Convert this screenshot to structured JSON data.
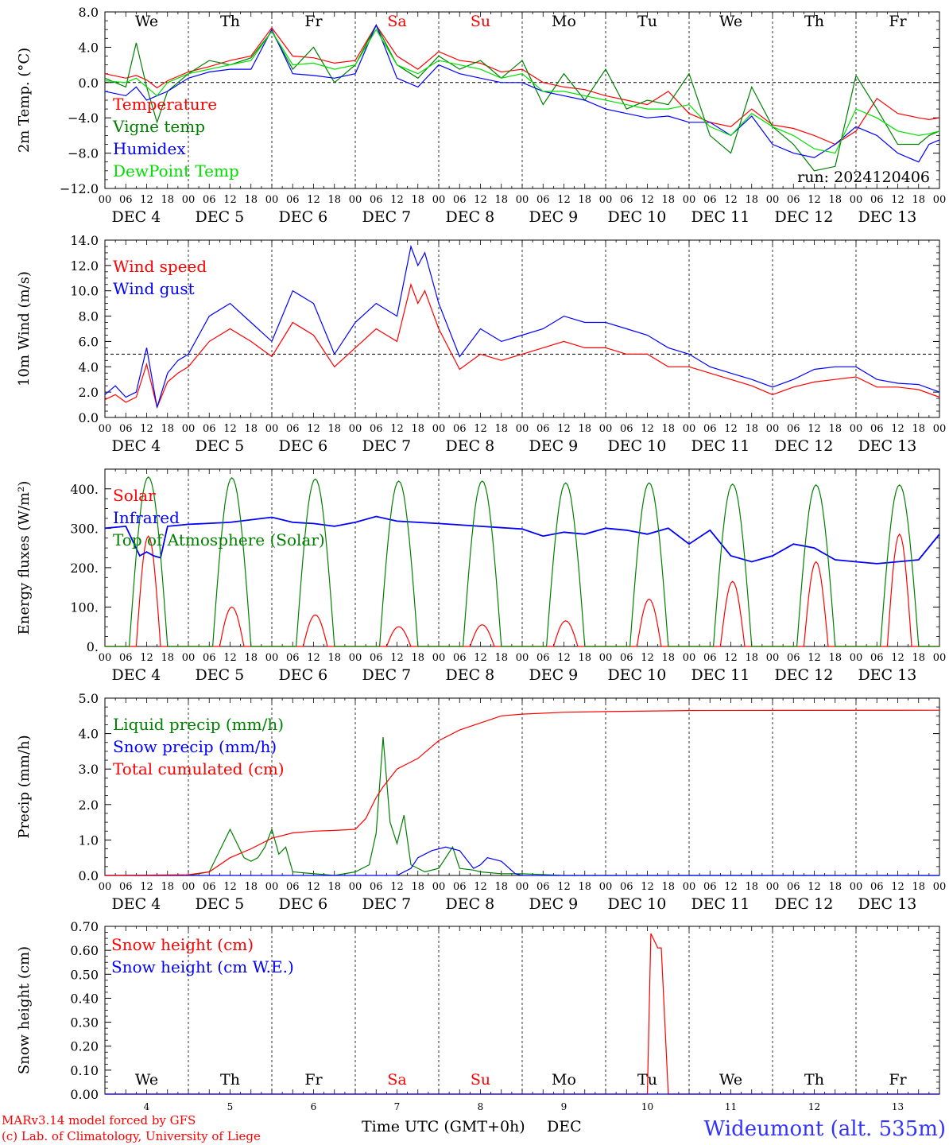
{
  "time_axis": {
    "hour_ticks": [
      "00",
      "06",
      "12",
      "18"
    ],
    "dates": [
      "DEC  4",
      "DEC  5",
      "DEC  6",
      "DEC  7",
      "DEC  8",
      "DEC  9",
      "DEC 10",
      "DEC 11",
      "DEC 12",
      "DEC 13"
    ],
    "day_names": [
      "We",
      "Th",
      "Fr",
      "Sa",
      "Su",
      "Mo",
      "Tu",
      "We",
      "Th",
      "Fr"
    ],
    "day_name_colors": [
      "#000000",
      "#000000",
      "#000000",
      "#ff0000",
      "#ff0000",
      "#000000",
      "#000000",
      "#000000",
      "#000000",
      "#000000"
    ],
    "day_numbers": [
      "4",
      "5",
      "6",
      "7",
      "8",
      "9",
      "10",
      "11",
      "12",
      "13"
    ],
    "xlabel": "Time UTC (GMT+0h)",
    "xlabel_unit": "DEC"
  },
  "footer": {
    "credit_line1": "MARv3.14 model forced by GFS",
    "credit_line2": "(c) Lab. of Climatology, University of Liege",
    "station": "Wideumont (alt. 535m)"
  },
  "chart_data": [
    {
      "type": "line",
      "ylabel": "2m Temp. (°C)",
      "ylim": [
        -12,
        8
      ],
      "yticks": [
        "8.0",
        "4.0",
        "0.0",
        "−4.0",
        "−8.0",
        "−12.0"
      ],
      "ytick_values": [
        8,
        4,
        0,
        -4,
        -8,
        -12
      ],
      "reference_line": 0,
      "run_label": "run: 2024120406",
      "x_unit": "hours since DEC 4 00 UTC",
      "series": [
        {
          "name": "Temperature",
          "color": "#ff0000",
          "x": [
            0,
            6,
            9,
            12,
            15,
            18,
            24,
            30,
            36,
            42,
            48,
            54,
            60,
            66,
            72,
            78,
            84,
            90,
            96,
            102,
            108,
            114,
            120,
            126,
            132,
            138,
            144,
            150,
            156,
            162,
            168,
            174,
            180,
            186,
            192,
            198,
            204,
            210,
            216,
            222,
            228,
            234,
            237,
            240
          ],
          "y": [
            1,
            0.5,
            0.8,
            0.3,
            -0.6,
            0.2,
            1.2,
            1.8,
            2.5,
            3,
            6.2,
            3,
            2.8,
            2.2,
            2.5,
            6.5,
            3,
            1.5,
            3.5,
            2.5,
            2.2,
            1.2,
            1.5,
            0,
            -0.5,
            -0.8,
            -1.5,
            -2,
            -2.5,
            -1,
            -3.5,
            -4.5,
            -5,
            -3,
            -4.8,
            -5.2,
            -6,
            -7,
            -5.5,
            -1.8,
            -3.5,
            -4,
            -4.2,
            -4
          ]
        },
        {
          "name": "Vigne temp",
          "color": "#008000",
          "x": [
            0,
            6,
            9,
            12,
            15,
            18,
            24,
            30,
            36,
            42,
            48,
            54,
            60,
            66,
            72,
            78,
            84,
            90,
            96,
            102,
            108,
            114,
            120,
            126,
            132,
            138,
            144,
            150,
            156,
            162,
            168,
            174,
            180,
            186,
            192,
            198,
            204,
            210,
            216,
            222,
            228,
            234,
            237,
            240
          ],
          "y": [
            0.5,
            -0.5,
            4.5,
            -0.5,
            -4.5,
            -1,
            1,
            2.5,
            2,
            2.8,
            5.8,
            1.5,
            4,
            0,
            2,
            6.5,
            2,
            0.5,
            3,
            1.5,
            2.5,
            0.5,
            2.5,
            -2.5,
            1,
            -2,
            1.5,
            -3,
            -2,
            -2.5,
            1,
            -6,
            -8,
            -0.5,
            -5,
            -7,
            -10,
            -9.5,
            0.8,
            -3,
            -7,
            -7,
            -6,
            -5.5
          ]
        },
        {
          "name": "Humidex",
          "color": "#0000ff",
          "x": [
            0,
            6,
            9,
            12,
            15,
            18,
            24,
            30,
            36,
            42,
            48,
            54,
            60,
            66,
            72,
            78,
            84,
            90,
            96,
            102,
            108,
            114,
            120,
            126,
            132,
            138,
            144,
            150,
            156,
            162,
            168,
            174,
            180,
            186,
            192,
            198,
            204,
            210,
            216,
            222,
            228,
            234,
            237,
            240
          ],
          "y": [
            -1,
            -1.5,
            -0.5,
            -2,
            -1.5,
            -1,
            0.5,
            1.2,
            1.5,
            1.5,
            6,
            1,
            0.8,
            0.5,
            1,
            6.5,
            0.5,
            -0.5,
            2,
            1,
            0.5,
            0,
            0,
            -1,
            -1.5,
            -2,
            -3,
            -3.5,
            -4,
            -3.8,
            -4.5,
            -4.5,
            -6,
            -3.8,
            -7,
            -8,
            -8.5,
            -7,
            -5,
            -6,
            -8,
            -9,
            -7,
            -6.5
          ]
        },
        {
          "name": "DewPoint Temp",
          "color": "#00e000",
          "x": [
            0,
            6,
            9,
            12,
            15,
            18,
            24,
            30,
            36,
            42,
            48,
            54,
            60,
            66,
            72,
            78,
            84,
            90,
            96,
            102,
            108,
            114,
            120,
            126,
            132,
            138,
            144,
            150,
            156,
            162,
            168,
            174,
            180,
            186,
            192,
            198,
            204,
            210,
            216,
            222,
            228,
            234,
            237,
            240
          ],
          "y": [
            0.2,
            0,
            0.5,
            -0.5,
            -1.5,
            0,
            1,
            1.5,
            2,
            2.5,
            5.8,
            2,
            2.2,
            1.5,
            2,
            6,
            2,
            1,
            2.5,
            2,
            1.5,
            0.5,
            1,
            -1,
            -1,
            -1.5,
            -2,
            -2.5,
            -3,
            -3,
            -2.5,
            -5,
            -6,
            -3.5,
            -5,
            -6,
            -7.5,
            -8,
            -3,
            -4,
            -5.5,
            -6,
            -5.8,
            -5.5
          ]
        }
      ]
    },
    {
      "type": "line",
      "ylabel": "10m Wind (m/s)",
      "ylim": [
        0,
        14
      ],
      "yticks": [
        "14.0",
        "12.0",
        "10.0",
        "8.0",
        "6.0",
        "4.0",
        "2.0",
        "0.0"
      ],
      "ytick_values": [
        14,
        12,
        10,
        8,
        6,
        4,
        2,
        0
      ],
      "reference_line": 5,
      "x_unit": "hours since DEC 4 00 UTC",
      "series": [
        {
          "name": "Wind speed",
          "color": "#ff0000",
          "x": [
            0,
            3,
            6,
            9,
            12,
            15,
            18,
            21,
            24,
            30,
            36,
            42,
            48,
            54,
            60,
            66,
            72,
            78,
            84,
            88,
            90,
            92,
            96,
            102,
            108,
            114,
            120,
            126,
            132,
            138,
            144,
            150,
            156,
            162,
            168,
            174,
            180,
            186,
            192,
            198,
            204,
            210,
            216,
            222,
            228,
            234,
            240
          ],
          "y": [
            1.4,
            1.8,
            1.2,
            1.6,
            4.2,
            0.8,
            2.8,
            3.5,
            4,
            6,
            7,
            6,
            4.8,
            7.5,
            6.5,
            4,
            5.5,
            7,
            6,
            10.5,
            9,
            10,
            7,
            3.8,
            5,
            4.5,
            5,
            5.5,
            6,
            5.5,
            5.5,
            5,
            5,
            4,
            4,
            3.5,
            3,
            2.5,
            1.8,
            2.4,
            2.8,
            3,
            3.2,
            2.4,
            2.4,
            2.2,
            1.6
          ]
        },
        {
          "name": "Wind gust",
          "color": "#0000ff",
          "x": [
            0,
            3,
            6,
            9,
            12,
            15,
            18,
            21,
            24,
            30,
            36,
            42,
            48,
            54,
            60,
            66,
            72,
            78,
            84,
            88,
            90,
            92,
            96,
            102,
            108,
            114,
            120,
            126,
            132,
            138,
            144,
            150,
            156,
            162,
            168,
            174,
            180,
            186,
            192,
            198,
            204,
            210,
            216,
            222,
            228,
            234,
            240
          ],
          "y": [
            1.8,
            2.5,
            1.6,
            2,
            5.5,
            0.8,
            3.5,
            4.5,
            5,
            8,
            9,
            7.5,
            6,
            10,
            9,
            5,
            7.5,
            9,
            8,
            13.5,
            12,
            13,
            9,
            4.8,
            7,
            6,
            6.5,
            7,
            8,
            7.5,
            7.5,
            7,
            6.5,
            5.5,
            5,
            4,
            3.5,
            3,
            2.4,
            3,
            3.8,
            4,
            4,
            3,
            2.7,
            2.6,
            2
          ]
        }
      ]
    },
    {
      "type": "line",
      "ylabel": "Energy fluxes (W/m²)",
      "ylim": [
        0,
        450
      ],
      "yticks": [
        "400.",
        "300.",
        "200.",
        "100.",
        "0."
      ],
      "ytick_values": [
        400,
        300,
        200,
        100,
        0
      ],
      "x_unit": "hours since DEC 4 00 UTC",
      "series": [
        {
          "name": "Solar",
          "color": "#ff0000",
          "peaks": [
            280,
            100,
            80,
            50,
            55,
            65,
            120,
            165,
            215,
            285
          ]
        },
        {
          "name": "Infrared",
          "color": "#0000ff",
          "x": [
            0,
            6,
            10,
            12,
            14,
            16,
            18,
            24,
            36,
            48,
            54,
            60,
            66,
            72,
            78,
            84,
            96,
            108,
            120,
            126,
            132,
            138,
            144,
            150,
            156,
            162,
            168,
            174,
            180,
            186,
            192,
            198,
            204,
            210,
            216,
            222,
            228,
            234,
            240
          ],
          "y": [
            300,
            305,
            230,
            240,
            230,
            225,
            305,
            310,
            315,
            328,
            315,
            312,
            305,
            315,
            330,
            318,
            312,
            305,
            298,
            280,
            290,
            285,
            300,
            295,
            285,
            300,
            260,
            295,
            230,
            215,
            230,
            260,
            250,
            220,
            215,
            210,
            215,
            220,
            285
          ]
        },
        {
          "name": "Top of Atmosphere (Solar)",
          "color": "#008000",
          "peaks": [
            430,
            428,
            425,
            420,
            420,
            415,
            415,
            412,
            410,
            410
          ]
        }
      ]
    },
    {
      "type": "line",
      "ylabel": "Precip (mm/h)",
      "ylim": [
        0,
        5
      ],
      "yticks": [
        "5.0",
        "4.0",
        "3.0",
        "2.0",
        "1.0",
        "0.0"
      ],
      "ytick_values": [
        5,
        4,
        3,
        2,
        1,
        0
      ],
      "x_unit": "hours since DEC 4 00 UTC",
      "series": [
        {
          "name": "Liquid precip (mm/h)",
          "color": "#008000",
          "x": [
            0,
            24,
            30,
            36,
            38,
            40,
            42,
            44,
            46,
            48,
            50,
            52,
            54,
            66,
            72,
            76,
            78,
            80,
            82,
            84,
            86,
            88,
            90,
            92,
            96,
            100,
            102,
            106,
            108,
            114,
            120,
            132,
            240
          ],
          "y": [
            0,
            0,
            0.1,
            1.3,
            0.9,
            0.5,
            0.4,
            0.5,
            0.8,
            1.3,
            0.6,
            0.8,
            0.1,
            0,
            0.1,
            0.3,
            1.2,
            3.9,
            1.5,
            0.9,
            1.7,
            0.3,
            0.2,
            0.1,
            0.2,
            0.8,
            0.2,
            0.15,
            0.1,
            0.05,
            0.05,
            0,
            0
          ]
        },
        {
          "name": "Snow precip (mm/h)",
          "color": "#0000ff",
          "x": [
            0,
            84,
            88,
            90,
            94,
            98,
            102,
            106,
            108,
            110,
            114,
            118,
            120,
            240
          ],
          "y": [
            0,
            0,
            0.2,
            0.5,
            0.7,
            0.8,
            0.7,
            0.2,
            0.3,
            0.5,
            0.4,
            0.05,
            0,
            0
          ]
        },
        {
          "name": "Total cumulated (cm)",
          "color": "#ff0000",
          "x": [
            0,
            24,
            30,
            36,
            42,
            48,
            54,
            60,
            66,
            72,
            75,
            78,
            80,
            84,
            90,
            96,
            102,
            108,
            114,
            120,
            132,
            144,
            168,
            240
          ],
          "y": [
            0,
            0.02,
            0.1,
            0.5,
            0.75,
            1.05,
            1.2,
            1.25,
            1.27,
            1.3,
            1.6,
            2.2,
            2.5,
            3,
            3.3,
            3.8,
            4.1,
            4.3,
            4.5,
            4.55,
            4.6,
            4.62,
            4.65,
            4.66
          ]
        }
      ]
    },
    {
      "type": "line",
      "ylabel": "Snow height (cm)",
      "ylim": [
        0,
        0.7
      ],
      "yticks": [
        "0.70",
        "0.60",
        "0.50",
        "0.40",
        "0.30",
        "0.20",
        "0.10",
        "0.00"
      ],
      "ytick_values": [
        0.7,
        0.6,
        0.5,
        0.4,
        0.3,
        0.2,
        0.1,
        0
      ],
      "x_unit": "hours since DEC 4 00 UTC",
      "series": [
        {
          "name": "Snow height (cm)",
          "color": "#ff0000",
          "x": [
            0,
            156,
            157,
            159,
            160,
            162,
            240
          ],
          "y": [
            0,
            0,
            0.67,
            0.61,
            0.61,
            0,
            0
          ]
        },
        {
          "name": "Snow height (cm W.E.)",
          "color": "#0000ff",
          "x": [
            0,
            240
          ],
          "y": [
            0,
            0
          ]
        }
      ]
    }
  ]
}
